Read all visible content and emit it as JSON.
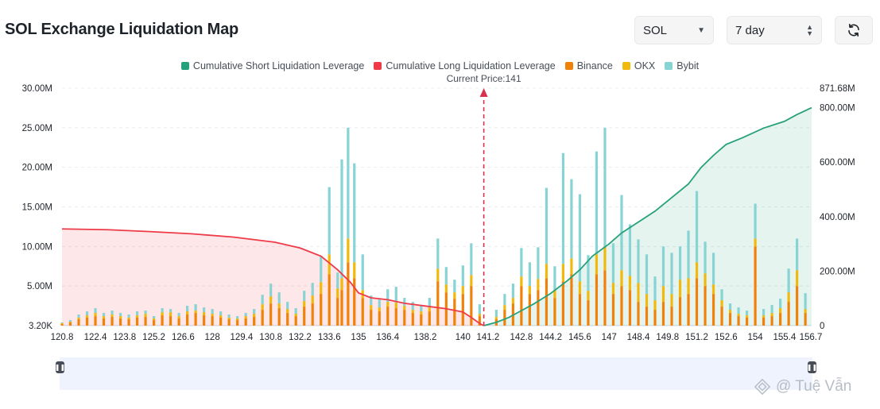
{
  "header": {
    "title": "SOL Exchange Liquidation Map"
  },
  "controls": {
    "symbol": "SOL",
    "period": "7 day"
  },
  "watermark": {
    "text": "@ Tuệ Vẫn"
  },
  "colors": {
    "short": "#26a17b",
    "long": "#ee3b47",
    "binance": "#f0820a",
    "okx": "#f0b90b",
    "bybit": "#88d3d3"
  },
  "chart_data": {
    "type": "bar",
    "legend": [
      "Cumulative Short Liquidation Leverage",
      "Cumulative Long Liquidation Leverage",
      "Binance",
      "OKX",
      "Bybit"
    ],
    "legend_position": "top-center",
    "annotation": "Current Price:141",
    "current_price": 141,
    "x_ticks": [
      "120.8",
      "122.4",
      "123.8",
      "125.2",
      "126.6",
      "128",
      "129.4",
      "130.8",
      "132.2",
      "133.6",
      "135",
      "136.4",
      "138.2",
      "140",
      "141.2",
      "142.8",
      "144.2",
      "145.6",
      "147",
      "148.4",
      "149.8",
      "151.2",
      "152.6",
      "154",
      "155.4",
      "156.7"
    ],
    "y_left_ticks": [
      "3.20K",
      "5.00M",
      "10.00M",
      "15.00M",
      "20.00M",
      "25.00M",
      "30.00M"
    ],
    "y_left_range": [
      0,
      30
    ],
    "y_left_unit": "M",
    "y_right_ticks": [
      "0",
      "200.00M",
      "400.00M",
      "600.00M",
      "800.00M",
      "871.68M"
    ],
    "y_right_range": [
      0,
      871.68
    ],
    "grid": "horizontal",
    "bars": [
      {
        "x": 120.8,
        "binance": 0.2,
        "okx": 0.1,
        "bybit": 0.1
      },
      {
        "x": 121.2,
        "binance": 0.4,
        "okx": 0.1,
        "bybit": 0.2
      },
      {
        "x": 121.6,
        "binance": 0.8,
        "okx": 0.2,
        "bybit": 0.4
      },
      {
        "x": 122.0,
        "binance": 1.0,
        "okx": 0.3,
        "bybit": 0.5
      },
      {
        "x": 122.4,
        "binance": 1.2,
        "okx": 0.4,
        "bybit": 0.6
      },
      {
        "x": 122.8,
        "binance": 0.9,
        "okx": 0.3,
        "bybit": 0.4
      },
      {
        "x": 123.2,
        "binance": 1.1,
        "okx": 0.3,
        "bybit": 0.5
      },
      {
        "x": 123.6,
        "binance": 0.9,
        "okx": 0.3,
        "bybit": 0.4
      },
      {
        "x": 124.0,
        "binance": 0.8,
        "okx": 0.2,
        "bybit": 0.4
      },
      {
        "x": 124.4,
        "binance": 1.0,
        "okx": 0.3,
        "bybit": 0.5
      },
      {
        "x": 124.8,
        "binance": 1.1,
        "okx": 0.4,
        "bybit": 0.4
      },
      {
        "x": 125.2,
        "binance": 0.7,
        "okx": 0.2,
        "bybit": 0.3
      },
      {
        "x": 125.6,
        "binance": 1.3,
        "okx": 0.4,
        "bybit": 0.5
      },
      {
        "x": 126.0,
        "binance": 1.2,
        "okx": 0.5,
        "bybit": 0.4
      },
      {
        "x": 126.4,
        "binance": 0.9,
        "okx": 0.3,
        "bybit": 0.4
      },
      {
        "x": 126.8,
        "binance": 1.4,
        "okx": 0.4,
        "bybit": 0.7
      },
      {
        "x": 127.2,
        "binance": 1.6,
        "okx": 0.3,
        "bybit": 0.8
      },
      {
        "x": 127.6,
        "binance": 1.3,
        "okx": 0.4,
        "bybit": 0.6
      },
      {
        "x": 128.0,
        "binance": 1.2,
        "okx": 0.3,
        "bybit": 0.6
      },
      {
        "x": 128.4,
        "binance": 1.0,
        "okx": 0.3,
        "bybit": 0.5
      },
      {
        "x": 128.8,
        "binance": 0.8,
        "okx": 0.2,
        "bybit": 0.4
      },
      {
        "x": 129.2,
        "binance": 0.7,
        "okx": 0.2,
        "bybit": 0.3
      },
      {
        "x": 129.6,
        "binance": 0.9,
        "okx": 0.3,
        "bybit": 0.4
      },
      {
        "x": 130.0,
        "binance": 1.1,
        "okx": 0.4,
        "bybit": 0.6
      },
      {
        "x": 130.4,
        "binance": 2.0,
        "okx": 0.7,
        "bybit": 1.2
      },
      {
        "x": 130.8,
        "binance": 2.8,
        "okx": 0.9,
        "bybit": 1.6
      },
      {
        "x": 131.2,
        "binance": 2.2,
        "okx": 0.6,
        "bybit": 1.4
      },
      {
        "x": 131.6,
        "binance": 1.6,
        "okx": 0.5,
        "bybit": 0.9
      },
      {
        "x": 132.0,
        "binance": 1.2,
        "okx": 0.3,
        "bybit": 0.7
      },
      {
        "x": 132.4,
        "binance": 2.4,
        "okx": 0.7,
        "bybit": 1.3
      },
      {
        "x": 132.8,
        "binance": 2.8,
        "okx": 1.0,
        "bybit": 1.6
      },
      {
        "x": 133.2,
        "binance": 4.0,
        "okx": 1.5,
        "bybit": 3.2
      },
      {
        "x": 133.6,
        "binance": 6.5,
        "okx": 2.5,
        "bybit": 8.5
      },
      {
        "x": 134.0,
        "binance": 3.5,
        "okx": 1.2,
        "bybit": 2.0
      },
      {
        "x": 134.2,
        "binance": 4.5,
        "okx": 1.5,
        "bybit": 15.0
      },
      {
        "x": 134.5,
        "binance": 8.0,
        "okx": 3.0,
        "bybit": 14.0
      },
      {
        "x": 134.8,
        "binance": 6.0,
        "okx": 2.0,
        "bybit": 12.5
      },
      {
        "x": 135.2,
        "binance": 3.5,
        "okx": 1.0,
        "bybit": 4.5
      },
      {
        "x": 135.6,
        "binance": 2.0,
        "okx": 0.6,
        "bybit": 1.2
      },
      {
        "x": 136.0,
        "binance": 1.8,
        "okx": 0.5,
        "bybit": 1.0
      },
      {
        "x": 136.4,
        "binance": 2.4,
        "okx": 0.6,
        "bybit": 1.6
      },
      {
        "x": 136.8,
        "binance": 2.2,
        "okx": 0.7,
        "bybit": 2.0
      },
      {
        "x": 137.2,
        "binance": 2.0,
        "okx": 0.5,
        "bybit": 1.0
      },
      {
        "x": 137.6,
        "binance": 1.6,
        "okx": 0.4,
        "bybit": 1.0
      },
      {
        "x": 138.0,
        "binance": 1.4,
        "okx": 0.4,
        "bybit": 0.8
      },
      {
        "x": 138.4,
        "binance": 1.8,
        "okx": 0.5,
        "bybit": 1.2
      },
      {
        "x": 138.8,
        "binance": 5.6,
        "okx": 1.6,
        "bybit": 3.8
      },
      {
        "x": 139.2,
        "binance": 4.2,
        "okx": 1.0,
        "bybit": 2.2
      },
      {
        "x": 139.6,
        "binance": 3.4,
        "okx": 0.8,
        "bybit": 1.6
      },
      {
        "x": 140.0,
        "binance": 4.0,
        "okx": 1.0,
        "bybit": 2.6
      },
      {
        "x": 140.4,
        "binance": 5.0,
        "okx": 1.4,
        "bybit": 4.0
      },
      {
        "x": 140.8,
        "binance": 1.2,
        "okx": 0.3,
        "bybit": 1.2
      },
      {
        "x": 141.6,
        "binance": 0.8,
        "okx": 0.3,
        "bybit": 0.9
      },
      {
        "x": 142.0,
        "binance": 2.0,
        "okx": 0.6,
        "bybit": 1.4
      },
      {
        "x": 142.4,
        "binance": 2.8,
        "okx": 0.7,
        "bybit": 1.8
      },
      {
        "x": 142.8,
        "binance": 5.0,
        "okx": 1.2,
        "bybit": 3.6
      },
      {
        "x": 143.2,
        "binance": 4.0,
        "okx": 1.0,
        "bybit": 3.0
      },
      {
        "x": 143.6,
        "binance": 4.5,
        "okx": 1.4,
        "bybit": 4.0
      },
      {
        "x": 144.0,
        "binance": 6.0,
        "okx": 1.8,
        "bybit": 9.6
      },
      {
        "x": 144.4,
        "binance": 3.5,
        "okx": 1.0,
        "bybit": 3.0
      },
      {
        "x": 144.8,
        "binance": 5.6,
        "okx": 2.2,
        "bybit": 14.0
      },
      {
        "x": 145.2,
        "binance": 6.5,
        "okx": 2.0,
        "bybit": 10.0
      },
      {
        "x": 145.6,
        "binance": 4.0,
        "okx": 1.6,
        "bybit": 11.0
      },
      {
        "x": 146.0,
        "binance": 3.2,
        "okx": 1.2,
        "bybit": 4.5
      },
      {
        "x": 146.4,
        "binance": 6.5,
        "okx": 2.5,
        "bybit": 13.0
      },
      {
        "x": 146.8,
        "binance": 7.0,
        "okx": 3.0,
        "bybit": 15.0
      },
      {
        "x": 147.2,
        "binance": 4.0,
        "okx": 1.4,
        "bybit": 5.0
      },
      {
        "x": 147.6,
        "binance": 5.0,
        "okx": 2.0,
        "bybit": 9.5
      },
      {
        "x": 148.0,
        "binance": 4.5,
        "okx": 1.8,
        "bybit": 6.5
      },
      {
        "x": 148.4,
        "binance": 3.0,
        "okx": 2.4,
        "bybit": 5.5
      },
      {
        "x": 148.8,
        "binance": 2.4,
        "okx": 1.6,
        "bybit": 5.0
      },
      {
        "x": 149.2,
        "binance": 2.0,
        "okx": 1.2,
        "bybit": 3.0
      },
      {
        "x": 149.6,
        "binance": 3.0,
        "okx": 2.0,
        "bybit": 5.0
      },
      {
        "x": 150.0,
        "binance": 2.4,
        "okx": 1.6,
        "bybit": 5.2
      },
      {
        "x": 150.4,
        "binance": 3.6,
        "okx": 2.2,
        "bybit": 4.2
      },
      {
        "x": 150.8,
        "binance": 4.0,
        "okx": 2.0,
        "bybit": 6.0
      },
      {
        "x": 151.2,
        "binance": 6.0,
        "okx": 2.0,
        "bybit": 9.0
      },
      {
        "x": 151.6,
        "binance": 5.0,
        "okx": 1.6,
        "bybit": 4.0
      },
      {
        "x": 152.0,
        "binance": 4.0,
        "okx": 1.2,
        "bybit": 4.0
      },
      {
        "x": 152.4,
        "binance": 2.4,
        "okx": 0.8,
        "bybit": 1.4
      },
      {
        "x": 152.8,
        "binance": 1.6,
        "okx": 0.4,
        "bybit": 0.8
      },
      {
        "x": 153.2,
        "binance": 1.2,
        "okx": 0.3,
        "bybit": 0.8
      },
      {
        "x": 153.6,
        "binance": 1.0,
        "okx": 0.3,
        "bybit": 0.6
      },
      {
        "x": 154.0,
        "binance": 10.0,
        "okx": 1.0,
        "bybit": 4.4
      },
      {
        "x": 154.4,
        "binance": 1.0,
        "okx": 0.3,
        "bybit": 0.8
      },
      {
        "x": 154.8,
        "binance": 1.2,
        "okx": 0.4,
        "bybit": 1.0
      },
      {
        "x": 155.2,
        "binance": 1.6,
        "okx": 0.6,
        "bybit": 1.2
      },
      {
        "x": 155.6,
        "binance": 3.0,
        "okx": 1.2,
        "bybit": 3.0
      },
      {
        "x": 156.0,
        "binance": 5.0,
        "okx": 2.0,
        "bybit": 4.0
      },
      {
        "x": 156.4,
        "binance": 1.6,
        "okx": 0.5,
        "bybit": 2.0
      }
    ],
    "long_cumulative": {
      "x": [
        120.8,
        123.0,
        125.0,
        127.0,
        129.0,
        131.0,
        132.2,
        133.2,
        134.0,
        134.6,
        135.0,
        135.6,
        136.4,
        137.2,
        138.2,
        139.2,
        140.0,
        140.4,
        140.8,
        141.0
      ],
      "y": [
        355,
        352,
        345,
        337,
        325,
        306,
        285,
        255,
        205,
        160,
        120,
        102,
        95,
        82,
        72,
        62,
        50,
        30,
        8,
        0
      ]
    },
    "short_cumulative": {
      "x": [
        141.0,
        141.6,
        142.2,
        142.8,
        143.4,
        144.2,
        145.0,
        145.6,
        146.2,
        147.0,
        147.6,
        148.4,
        149.2,
        150.0,
        150.8,
        151.4,
        152.0,
        152.6,
        153.4,
        154.4,
        155.4,
        156.0,
        156.7
      ],
      "y": [
        0,
        12,
        30,
        55,
        80,
        118,
        165,
        205,
        255,
        300,
        340,
        380,
        420,
        470,
        520,
        580,
        625,
        665,
        690,
        725,
        750,
        775,
        800
      ]
    }
  }
}
